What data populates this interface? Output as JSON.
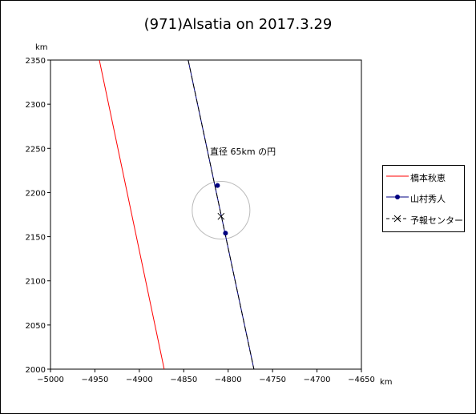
{
  "chart_data": {
    "type": "line",
    "title": "(971)Alsatia on 2017.3.29",
    "xunit": "km",
    "yunit": "km",
    "xlim": [
      -5000,
      -4650
    ],
    "ylim": [
      2000,
      2350
    ],
    "xticks": [
      -5000,
      -4950,
      -4900,
      -4850,
      -4800,
      -4750,
      -4700,
      -4650
    ],
    "yticks": [
      2000,
      2050,
      2100,
      2150,
      2200,
      2250,
      2300,
      2350
    ],
    "xtick_labels": [
      "−5000",
      "−4950",
      "−4900",
      "−4850",
      "−4800",
      "−4750",
      "−4700",
      "−4650"
    ],
    "ytick_labels": [
      "2000",
      "2050",
      "2100",
      "2150",
      "2200",
      "2250",
      "2300",
      "2350"
    ],
    "grid": false,
    "legend_position": "right",
    "series": [
      {
        "name": "橋本秋恵",
        "color": "#ff0000",
        "style": "solid",
        "marker": "none",
        "x": [
          -4945,
          -4872
        ],
        "y": [
          2350,
          2000
        ]
      },
      {
        "name": "山村秀人",
        "color": "#000080",
        "style": "solid",
        "marker": "circle",
        "x": [
          -4845,
          -4771
        ],
        "y": [
          2350,
          2000
        ],
        "markers": [
          {
            "x": -4812,
            "y": 2208
          },
          {
            "x": -4803,
            "y": 2154
          }
        ]
      },
      {
        "name": "予報センター",
        "color": "#000000",
        "style": "dashed",
        "marker": "x",
        "x": [
          -4845,
          -4771
        ],
        "y": [
          2350,
          2000
        ],
        "markers": [
          {
            "x": -4808,
            "y": 2173
          }
        ]
      }
    ],
    "circle": {
      "center": [
        -4808,
        2180
      ],
      "diameter": 65,
      "color": "#bbbbbb"
    },
    "annotation": "直径 65km の円"
  }
}
